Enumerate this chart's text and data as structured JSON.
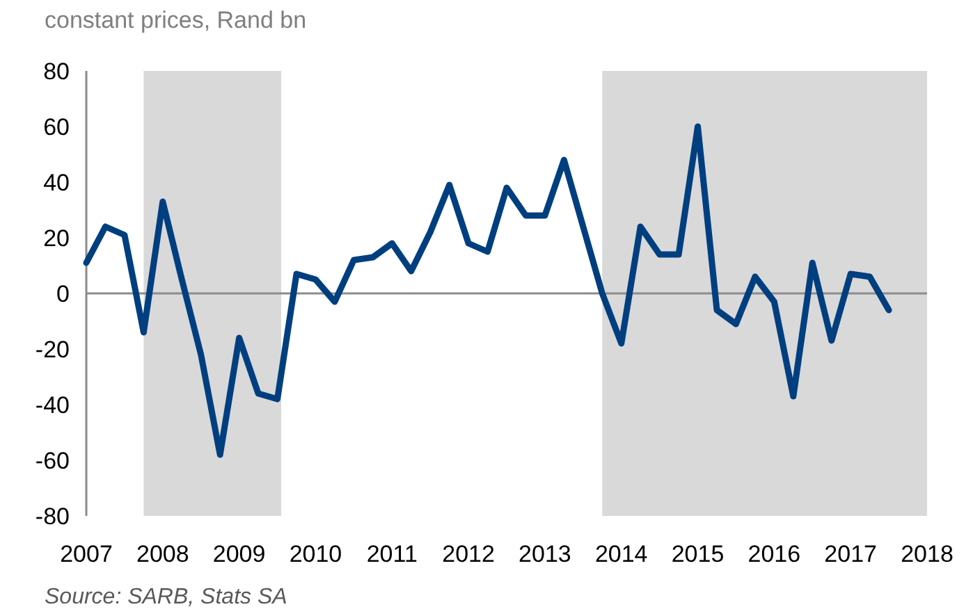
{
  "chart_data": {
    "type": "line",
    "ylabel": "constant prices, Rand bn",
    "x": [
      2007,
      2007.25,
      2007.5,
      2007.75,
      2008,
      2008.25,
      2008.5,
      2008.75,
      2009,
      2009.25,
      2009.5,
      2009.75,
      2010,
      2010.25,
      2010.5,
      2010.75,
      2011,
      2011.25,
      2011.5,
      2011.75,
      2012,
      2012.25,
      2012.5,
      2012.75,
      2013,
      2013.25,
      2013.5,
      2013.75,
      2014,
      2014.25,
      2014.5,
      2014.75,
      2015,
      2015.25,
      2015.5,
      2015.75,
      2016,
      2016.25,
      2016.5,
      2016.75,
      2017,
      2017.25,
      2017.5
    ],
    "series": [
      {
        "color": "#003f7f",
        "values": [
          11,
          24,
          21,
          -14,
          33,
          5,
          -22,
          -58,
          -16,
          -36,
          -38,
          7,
          5,
          -3,
          12,
          13,
          18,
          8,
          22,
          39,
          18,
          15,
          38,
          28,
          28,
          48,
          24,
          0,
          -18,
          24,
          14,
          14,
          60,
          -6,
          -11,
          6,
          -3,
          -37,
          11,
          -17,
          7,
          6,
          -6
        ]
      }
    ],
    "xlim": [
      2007,
      2018
    ],
    "xticks": [
      2007,
      2008,
      2009,
      2010,
      2011,
      2012,
      2013,
      2014,
      2015,
      2016,
      2017,
      2018
    ],
    "ylim": [
      -80,
      80
    ],
    "yticks": [
      -80,
      -60,
      -40,
      -20,
      0,
      20,
      40,
      60,
      80
    ],
    "grid": false,
    "marker": "none",
    "line_style": "solid",
    "ref_lines": [
      {
        "axis": "y",
        "value": 0,
        "color": "#8c8c8c"
      }
    ],
    "bands": [
      {
        "axis": "x",
        "from": 2007.75,
        "to": 2009.55,
        "color": "#d9d9d9"
      },
      {
        "axis": "x",
        "from": 2013.75,
        "to": 2018,
        "color": "#d9d9d9"
      }
    ],
    "annotations": [
      "Source: SARB, Stats SA"
    ]
  }
}
